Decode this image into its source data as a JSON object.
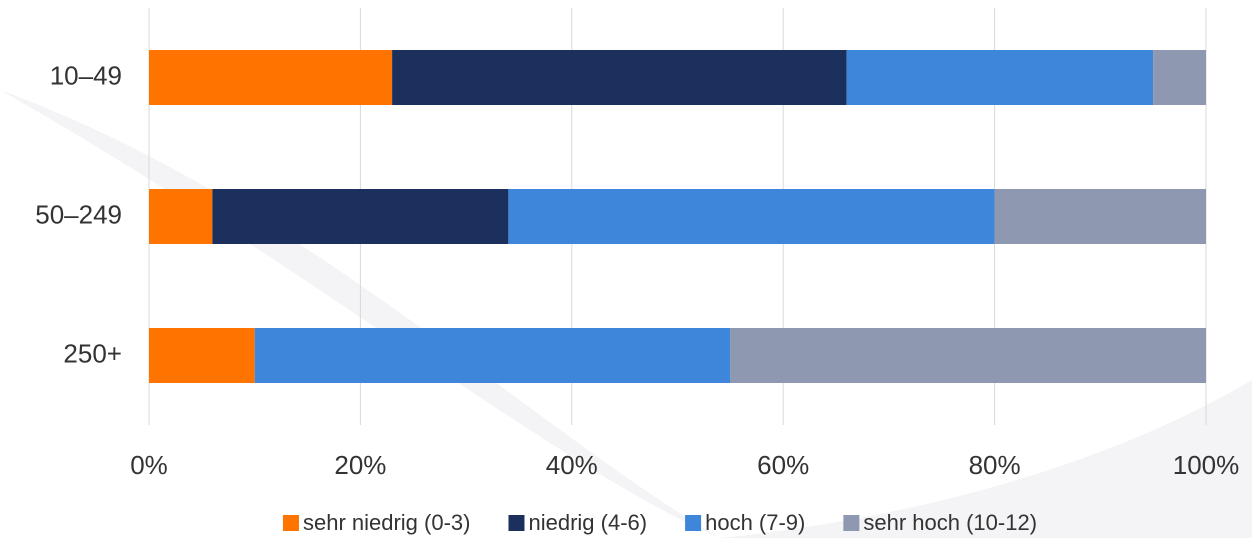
{
  "chart_data": {
    "type": "stacked-bar-horizontal",
    "categories": [
      "10–49",
      "50–249",
      "250+"
    ],
    "series": [
      {
        "name": "sehr niedrig (0-3)",
        "color": "#ff7300",
        "values": [
          23,
          6,
          10
        ]
      },
      {
        "name": "niedrig (4-6)",
        "color": "#1c305e",
        "values": [
          43,
          28,
          0
        ]
      },
      {
        "name": "hoch (7-9)",
        "color": "#3d86d9",
        "values": [
          29,
          46,
          45
        ]
      },
      {
        "name": "sehr hoch (10-12)",
        "color": "#8e98b0",
        "values": [
          5,
          20,
          45
        ]
      }
    ],
    "xlim": [
      0,
      100
    ],
    "xticks": [
      {
        "value": 0,
        "label": "0%"
      },
      {
        "value": 20,
        "label": "20%"
      },
      {
        "value": 40,
        "label": "40%"
      },
      {
        "value": 60,
        "label": "60%"
      },
      {
        "value": 80,
        "label": "80%"
      },
      {
        "value": 100,
        "label": "100%"
      }
    ],
    "grid": true,
    "legend": "bottom"
  }
}
